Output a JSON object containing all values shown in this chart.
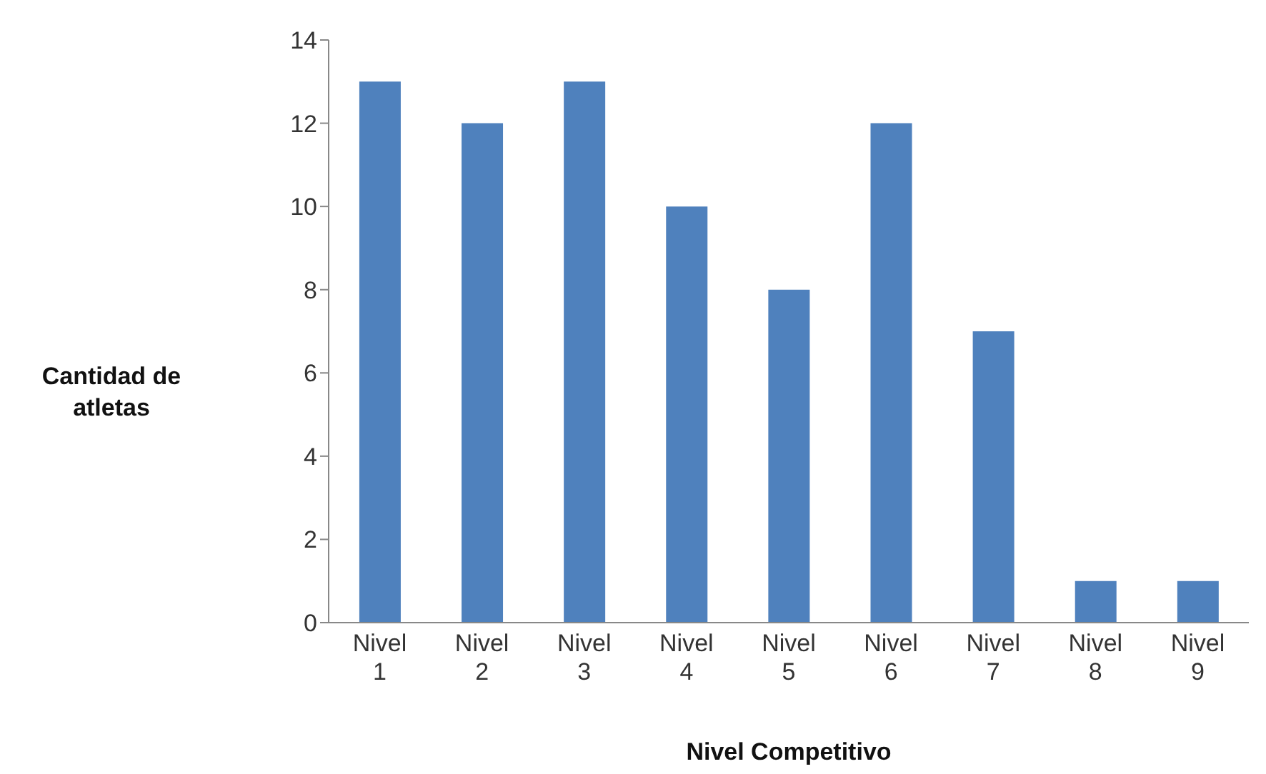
{
  "chart_data": {
    "type": "bar",
    "xlabel": "Nivel Competitivo",
    "ylabel": "Cantidad de atletas",
    "categories": [
      "Nivel 1",
      "Nivel 2",
      "Nivel 3",
      "Nivel 4",
      "Nivel 5",
      "Nivel 6",
      "Nivel 7",
      "Nivel 8",
      "Nivel 9"
    ],
    "values": [
      13,
      12,
      13,
      10,
      8,
      12,
      7,
      1,
      1
    ],
    "color": "#4f81bd",
    "ylim": [
      0,
      14
    ],
    "yticks": [
      0,
      2,
      4,
      6,
      8,
      10,
      12,
      14
    ],
    "grid": false,
    "legend": false
  }
}
